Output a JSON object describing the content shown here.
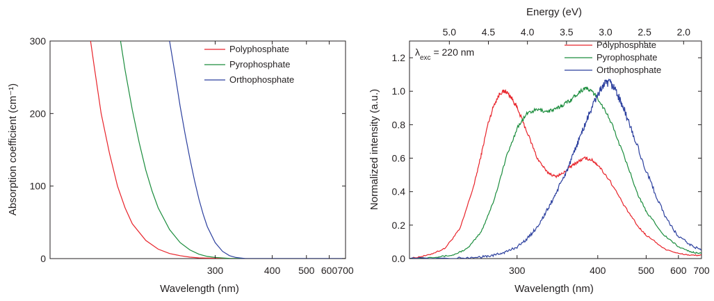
{
  "chart_data": [
    {
      "type": "line",
      "xlabel": "Wavelength (nm)",
      "ylabel": "Absorption coefficient (cm⁻¹)",
      "x_scale": "reciprocal",
      "xlim": [
        174,
        700
      ],
      "ylim": [
        0,
        300
      ],
      "xticks": [
        300,
        400,
        500,
        600,
        700
      ],
      "yticks": [
        0,
        100,
        200,
        300
      ],
      "grid": false,
      "legend_position": "top-right",
      "series": [
        {
          "name": "Polyphosphate",
          "color": "#e8232a",
          "x": [
            194,
            196,
            200,
            205,
            210,
            215,
            220,
            230,
            240,
            250,
            260,
            270,
            280,
            300,
            320,
            350,
            400,
            700
          ],
          "y": [
            300,
            265,
            200,
            145,
            100,
            70,
            48,
            25,
            13,
            7,
            4,
            2,
            1,
            0.4,
            0.1,
            0,
            0,
            0
          ]
        },
        {
          "name": "Pyrophosphate",
          "color": "#1a8c3c",
          "x": [
            212,
            215,
            220,
            225,
            230,
            235,
            240,
            250,
            260,
            270,
            280,
            290,
            300,
            320,
            350,
            400,
            700
          ],
          "y": [
            300,
            260,
            205,
            160,
            122,
            93,
            70,
            40,
            22,
            12,
            6,
            3,
            1.5,
            0.3,
            0,
            0,
            0
          ]
        },
        {
          "name": "Orthophosphate",
          "color": "#2b3f9e",
          "x": [
            250,
            255,
            260,
            265,
            270,
            275,
            280,
            285,
            290,
            300,
            310,
            320,
            330,
            345,
            360,
            400,
            700
          ],
          "y": [
            300,
            255,
            210,
            172,
            138,
            108,
            82,
            61,
            44,
            22,
            10,
            4,
            1.5,
            0.2,
            0,
            0,
            0
          ]
        }
      ]
    },
    {
      "type": "line",
      "xlabel": "Wavelength (nm)",
      "ylabel": "Normalized intensity (a.u.)",
      "secondary_xlabel": "Energy (eV)",
      "x_scale": "reciprocal",
      "xlim": [
        225,
        700
      ],
      "ylim": [
        0,
        1.3
      ],
      "xticks": [
        300,
        400,
        500,
        600,
        700
      ],
      "yticks": [
        0.0,
        0.2,
        0.4,
        0.6,
        0.8,
        1.0,
        1.2
      ],
      "secondary_xticks": [
        5.0,
        4.5,
        4.0,
        3.5,
        3.0,
        2.5,
        2.0
      ],
      "grid": false,
      "legend_position": "top-right",
      "annotation": "λ",
      "annotation_sub": "exc",
      "annotation_rest": " = 220 nm",
      "series": [
        {
          "name": "Polyphosphate",
          "color": "#e8232a",
          "x": [
            225,
            235,
            245,
            255,
            265,
            270,
            275,
            280,
            285,
            290,
            295,
            300,
            310,
            320,
            330,
            340,
            350,
            360,
            370,
            380,
            390,
            400,
            420,
            450,
            480,
            500,
            550,
            600,
            650,
            700
          ],
          "y": [
            0.0,
            0.02,
            0.06,
            0.18,
            0.45,
            0.62,
            0.8,
            0.92,
            0.99,
            1.0,
            0.96,
            0.9,
            0.75,
            0.6,
            0.52,
            0.49,
            0.51,
            0.55,
            0.58,
            0.6,
            0.59,
            0.56,
            0.47,
            0.31,
            0.19,
            0.14,
            0.06,
            0.03,
            0.02,
            0.02
          ]
        },
        {
          "name": "Pyrophosphate",
          "color": "#1a8c3c",
          "x": [
            225,
            240,
            250,
            260,
            270,
            280,
            290,
            300,
            310,
            320,
            330,
            340,
            350,
            360,
            370,
            380,
            390,
            400,
            420,
            450,
            480,
            500,
            550,
            600,
            650,
            700
          ],
          "y": [
            0.0,
            0.01,
            0.02,
            0.06,
            0.16,
            0.35,
            0.6,
            0.78,
            0.87,
            0.89,
            0.88,
            0.89,
            0.92,
            0.95,
            0.99,
            1.02,
            1.0,
            0.96,
            0.84,
            0.6,
            0.38,
            0.28,
            0.14,
            0.07,
            0.04,
            0.03
          ]
        },
        {
          "name": "Orthophosphate",
          "color": "#2b3f9e",
          "x": [
            225,
            250,
            270,
            280,
            290,
            300,
            310,
            320,
            330,
            340,
            350,
            360,
            370,
            380,
            390,
            400,
            410,
            420,
            430,
            440,
            450,
            470,
            500,
            530,
            560,
            600,
            650,
            700
          ],
          "y": [
            0.0,
            0.0,
            0.01,
            0.02,
            0.04,
            0.07,
            0.12,
            0.19,
            0.28,
            0.38,
            0.48,
            0.58,
            0.7,
            0.8,
            0.9,
            0.98,
            1.04,
            1.05,
            1.02,
            0.95,
            0.88,
            0.73,
            0.52,
            0.36,
            0.23,
            0.13,
            0.08,
            0.05
          ]
        }
      ]
    }
  ]
}
